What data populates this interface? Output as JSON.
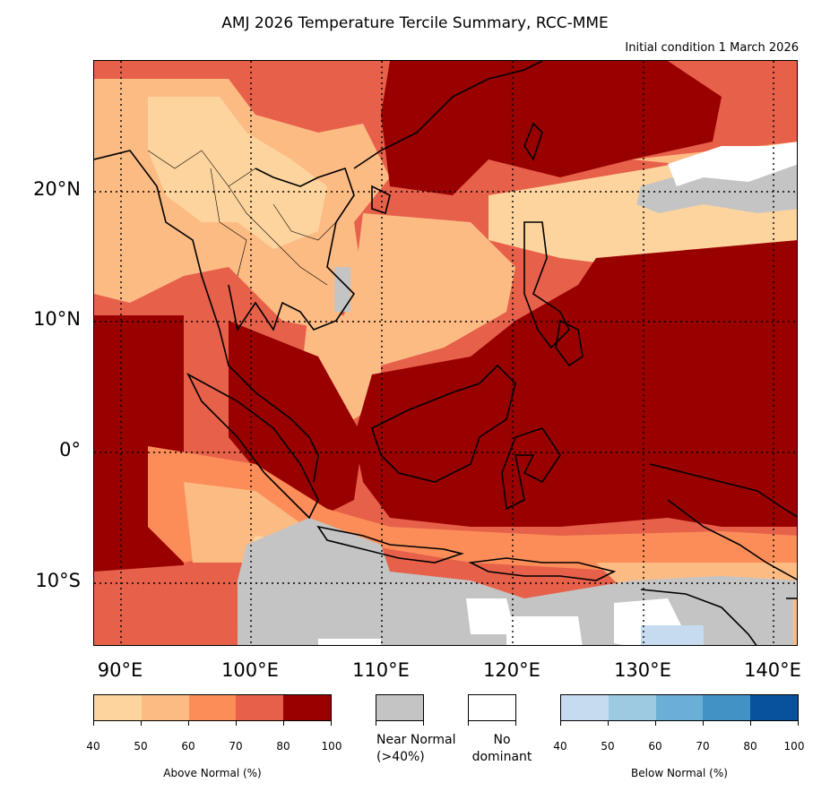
{
  "title": "AMJ 2026 Temperature Tercile Summary, RCC-MME",
  "subtitle": "Initial condition 1 March 2026",
  "map": {
    "lat_labels": [
      "20°N",
      "10°N",
      "0°",
      "10°S"
    ],
    "lon_labels": [
      "90°E",
      "100°E",
      "110°E",
      "120°E",
      "130°E",
      "140°E"
    ],
    "colors": {
      "an40": "#fdd49e",
      "an50": "#fdbb84",
      "an60": "#fc8d59",
      "an70": "#e6604a",
      "an80": "#990000",
      "near_normal": "#c4c4c4",
      "no_dominant": "#ffffff",
      "bn40": "#c6dbef",
      "bn50": "#9ecae1",
      "bn60": "#6baed6",
      "bn70": "#4292c6",
      "bn80": "#08519c"
    }
  },
  "legend": {
    "above_normal": {
      "label": "Above Normal (%)",
      "ticks": [
        "40",
        "50",
        "60",
        "70",
        "80",
        "100"
      ],
      "colors": [
        "#fdd49e",
        "#fdbb84",
        "#fc8d59",
        "#e6604a",
        "#990000"
      ]
    },
    "near_normal": {
      "label_line1": "Near Normal",
      "label_line2": "(>40%)",
      "color": "#c4c4c4"
    },
    "no_dominant": {
      "label_line1": "No",
      "label_line2": "dominant",
      "color": "#ffffff"
    },
    "below_normal": {
      "label": "Below Normal (%)",
      "ticks": [
        "40",
        "50",
        "60",
        "70",
        "80",
        "100"
      ],
      "colors": [
        "#c6dbef",
        "#9ecae1",
        "#6baed6",
        "#4292c6",
        "#08519c"
      ]
    }
  }
}
